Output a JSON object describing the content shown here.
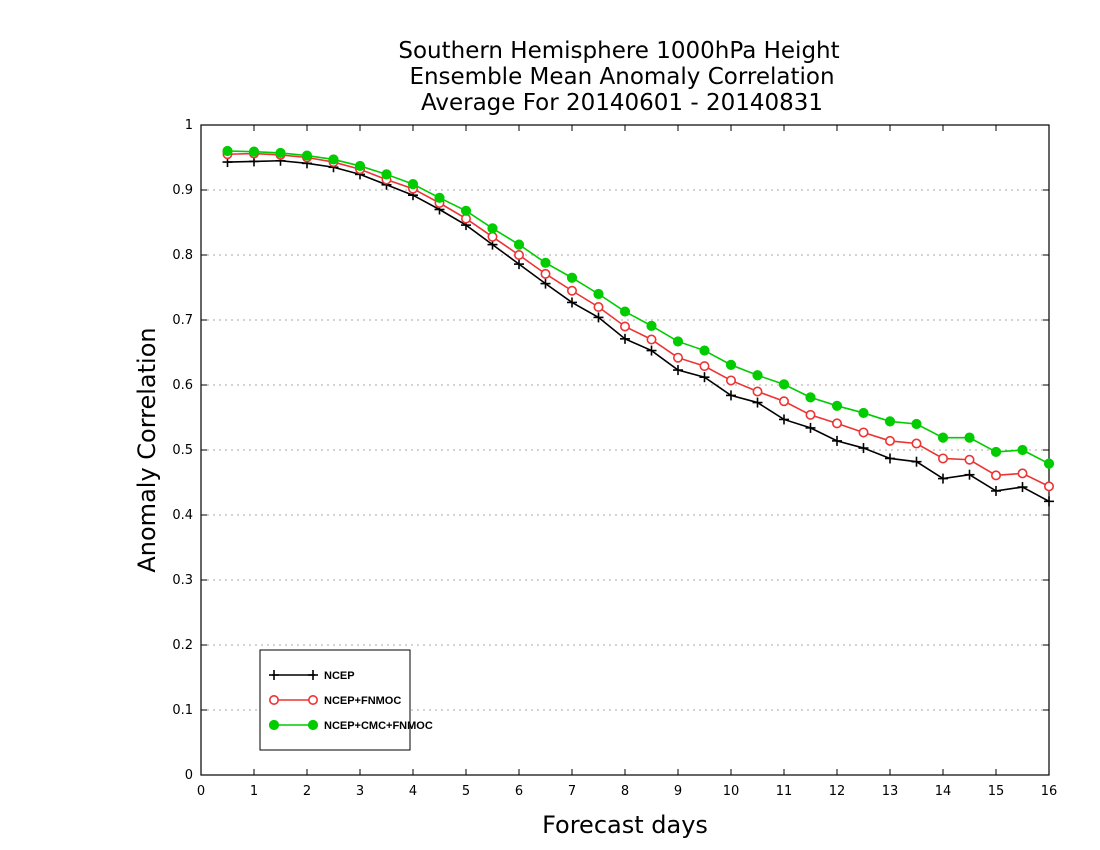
{
  "chart_data": {
    "type": "line",
    "title": [
      "Southern Hemisphere 1000hPa Height",
      "Ensemble Mean Anomaly Correlation",
      "Average For 20140601 - 20140831"
    ],
    "xlabel": "Forecast days",
    "ylabel": "Anomaly Correlation",
    "xlim": [
      0,
      16
    ],
    "ylim": [
      0,
      1
    ],
    "x_ticks": [
      "0",
      "1",
      "2",
      "3",
      "4",
      "5",
      "6",
      "7",
      "8",
      "9",
      "10",
      "11",
      "12",
      "13",
      "14",
      "15",
      "16"
    ],
    "y_ticks": [
      "0",
      "0.1",
      "0.2",
      "0.3",
      "0.4",
      "0.5",
      "0.6",
      "0.7",
      "0.8",
      "0.9",
      "1"
    ],
    "grid": "horizontal dotted",
    "legend_position": "bottom-left",
    "x": [
      0.5,
      1,
      1.5,
      2,
      2.5,
      3,
      3.5,
      4,
      4.5,
      5,
      5.5,
      6,
      6.5,
      7,
      7.5,
      8,
      8.5,
      9,
      9.5,
      10,
      10.5,
      11,
      11.5,
      12,
      12.5,
      13,
      13.5,
      14,
      14.5,
      15,
      15.5,
      16
    ],
    "series": [
      {
        "name": "NCEP",
        "color": "#000000",
        "marker": "plus",
        "values": [
          0.943,
          0.944,
          0.945,
          0.941,
          0.935,
          0.924,
          0.908,
          0.892,
          0.87,
          0.846,
          0.816,
          0.786,
          0.756,
          0.727,
          0.704,
          0.671,
          0.653,
          0.623,
          0.612,
          0.584,
          0.573,
          0.547,
          0.534,
          0.514,
          0.503,
          0.487,
          0.482,
          0.456,
          0.462,
          0.437,
          0.443,
          0.421
        ]
      },
      {
        "name": "NCEP+FNMOC",
        "color": "#ee3333",
        "marker": "open-circle",
        "values": [
          0.955,
          0.956,
          0.954,
          0.95,
          0.943,
          0.932,
          0.916,
          0.902,
          0.88,
          0.856,
          0.828,
          0.8,
          0.771,
          0.745,
          0.72,
          0.69,
          0.67,
          0.642,
          0.629,
          0.607,
          0.59,
          0.575,
          0.554,
          0.541,
          0.527,
          0.514,
          0.51,
          0.487,
          0.485,
          0.461,
          0.464,
          0.444
        ]
      },
      {
        "name": "NCEP+CMC+FNMOC",
        "color": "#00cc00",
        "marker": "filled-circle",
        "values": [
          0.96,
          0.959,
          0.957,
          0.953,
          0.947,
          0.937,
          0.924,
          0.909,
          0.888,
          0.868,
          0.841,
          0.816,
          0.788,
          0.765,
          0.74,
          0.713,
          0.691,
          0.667,
          0.653,
          0.631,
          0.615,
          0.601,
          0.581,
          0.568,
          0.557,
          0.544,
          0.54,
          0.519,
          0.519,
          0.497,
          0.5,
          0.479
        ]
      }
    ]
  }
}
